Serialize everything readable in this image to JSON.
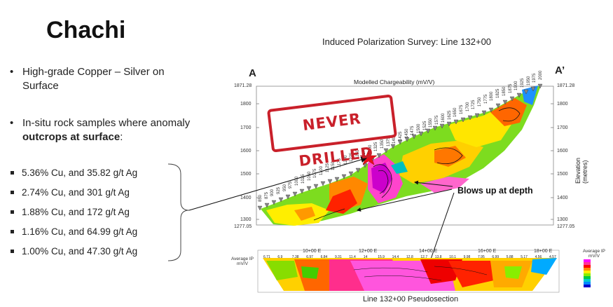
{
  "slide": {
    "title": "Chachi",
    "bullets": [
      {
        "text": "High-grade Copper – Silver on Surface"
      },
      {
        "text_before": "In-situ rock samples where anomaly ",
        "text_bold": "outcrops at surface",
        "text_after": ":"
      }
    ],
    "samples": [
      "5.36% Cu, and 35.82 g/t Ag",
      "2.74% Cu, and 301 g/t Ag",
      "1.88% Cu, and 172 g/t Ag",
      "1.16% Cu, and 64.99 g/t Ag",
      "1.00% Cu, and 47.30 g/t Ag"
    ]
  },
  "figure": {
    "survey_title": "Induced Polarization Survey: Line 132+00",
    "section_title": "Modelled Chargeability (mV/V)",
    "label_a": "A",
    "label_a_prime": "A’",
    "stamp_text": "NEVER DRILLED",
    "callout": "Blows up at depth",
    "y_axis_title": "Elevation (metres)",
    "y_ticks_left": [
      "1871.28",
      "1800",
      "1700",
      "1600",
      "1500",
      "1400",
      "1300",
      "1277.05"
    ],
    "y_ticks_right": [
      "1871.28",
      "1800",
      "1700",
      "1600",
      "1500",
      "1400",
      "1300",
      "1277.05"
    ],
    "station_labels": [
      "850",
      "875",
      "900",
      "925",
      "950",
      "975",
      "1000",
      "1025",
      "1050",
      "1075",
      "1100",
      "1125",
      "1150",
      "1175",
      "1200",
      "1225",
      "1250",
      "1275",
      "1300",
      "1325",
      "1350",
      "1375",
      "1400",
      "1425",
      "1450",
      "1475",
      "1500",
      "1525",
      "1550",
      "1575",
      "1600",
      "1625",
      "1650",
      "1675",
      "1700",
      "1725",
      "1750",
      "1775",
      "1800",
      "1825",
      "1850",
      "1875",
      "1900",
      "1925",
      "1950",
      "1975",
      "2000"
    ],
    "pseudo": {
      "avg_ip_label_left": "Average IP",
      "avg_ip_unit_left": "mV/V",
      "avg_ip_label_right": "Average IP",
      "avg_ip_unit_right": "mV/V",
      "x_ticks": [
        "10+00 E",
        "12+00 E",
        "14+00 E",
        "16+00 E",
        "18+00 E"
      ],
      "caption": "Line 132+00 Pseudosection",
      "legend_colors": [
        "#ff00ff",
        "#ff3399",
        "#ff0000",
        "#ff8800",
        "#ffee00",
        "#88ee00",
        "#00cc44",
        "#00cccc",
        "#0088ff",
        "#0000cc"
      ],
      "top_row_values": [
        "6.71",
        "6.9",
        "7.38",
        "6.97",
        "6.84",
        "9.31",
        "11.4",
        "14",
        "15.9",
        "14.4",
        "12.8",
        "12.7",
        "13.8",
        "10.1",
        "9.98",
        "7.95",
        "6.99",
        "5.88",
        "5.17",
        "4.56",
        "4.57"
      ]
    }
  }
}
